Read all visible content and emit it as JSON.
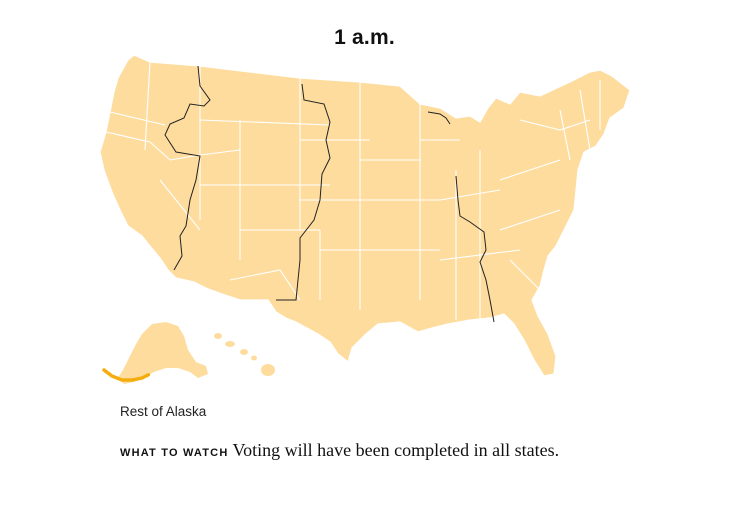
{
  "map": {
    "title": "1 a.m.",
    "caption": "Rest of Alaska",
    "watch": {
      "kicker": "WHAT TO WATCH",
      "text": "Voting will have been completed in all states."
    },
    "colors": {
      "land": "#fddc9e",
      "state_border": "#ffffff",
      "timezone_line": "#222222",
      "polls_closing": "#f4ad0c"
    },
    "highlighted_region": "Rest of Alaska"
  }
}
